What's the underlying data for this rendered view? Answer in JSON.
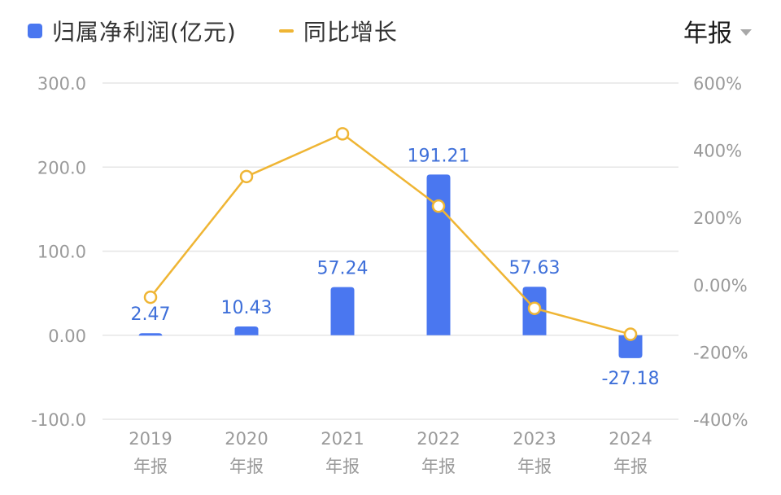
{
  "legend": {
    "bar_label": "归属净利润(亿元)",
    "line_label": "同比增长"
  },
  "period_selector": {
    "label": "年报"
  },
  "colors": {
    "bar": "#4a77f0",
    "line": "#efb534",
    "grid": "#e6e6e6",
    "text": "#9a9a9a",
    "label": "#3e6fd9"
  },
  "chart_data": {
    "type": "bar",
    "categories": [
      [
        "2019",
        "年报"
      ],
      [
        "2020",
        "年报"
      ],
      [
        "2021",
        "年报"
      ],
      [
        "2022",
        "年报"
      ],
      [
        "2023",
        "年报"
      ],
      [
        "2024",
        "年报"
      ]
    ],
    "series": [
      {
        "name": "归属净利润(亿元)",
        "type": "bar",
        "axis": "left",
        "values": [
          2.47,
          10.43,
          57.24,
          191.21,
          57.63,
          -27.18
        ],
        "labels": [
          "2.47",
          "10.43",
          "57.24",
          "191.21",
          "57.63",
          "-27.18"
        ]
      },
      {
        "name": "同比增长",
        "type": "line",
        "axis": "right",
        "values": [
          -37,
          322,
          449,
          234,
          -70,
          -147
        ]
      }
    ],
    "left_axis": {
      "ticks": [
        300,
        200,
        100,
        0,
        -100
      ],
      "tick_labels": [
        "300.0",
        "200.0",
        "100.0",
        "0.00",
        "-100.0"
      ],
      "range": [
        -100,
        300
      ]
    },
    "right_axis": {
      "ticks": [
        600,
        400,
        200,
        0,
        -200,
        -400
      ],
      "tick_labels": [
        "600%",
        "400%",
        "200%",
        "0.00%",
        "-200%",
        "-400%"
      ],
      "range": [
        -400,
        600
      ]
    },
    "grid": true,
    "legend_position": "top-left"
  }
}
